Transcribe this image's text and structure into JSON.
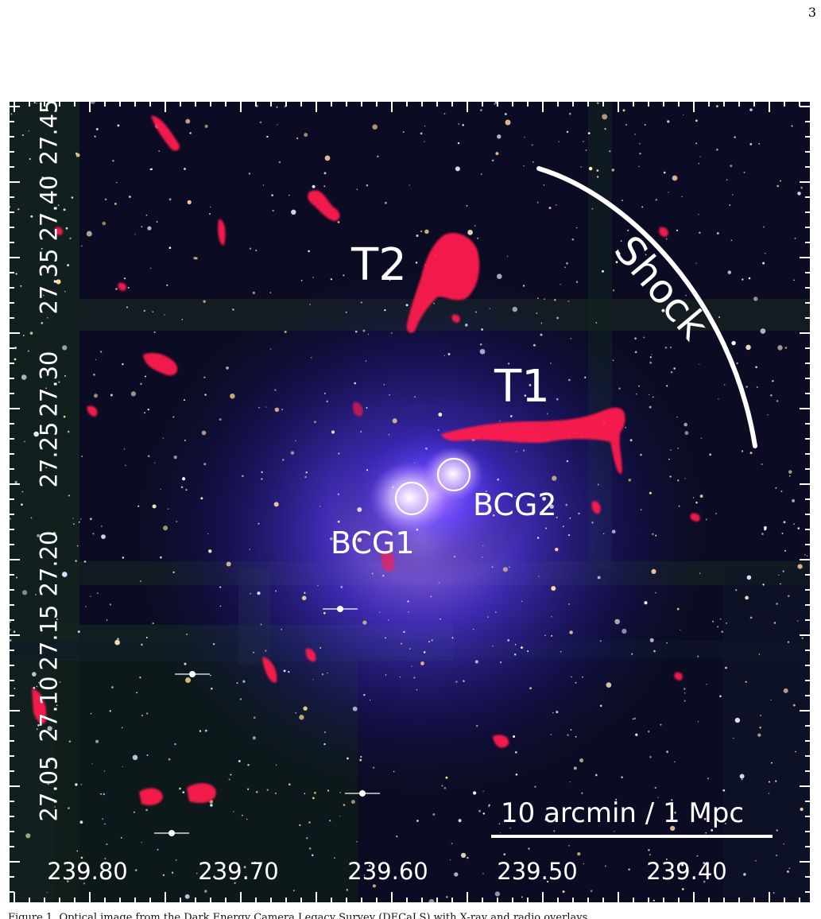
{
  "page_number": "3",
  "figure": {
    "y_tick_labels": [
      "27.45",
      "27.40",
      "27.35",
      "27.30",
      "27.25",
      "27.20",
      "27.15",
      "27.10",
      "27.05"
    ],
    "x_tick_labels": [
      "239.80",
      "239.70",
      "239.60",
      "239.50",
      "239.40"
    ],
    "annotations": {
      "t2": "T2",
      "t1": "T1",
      "shock": "Shock",
      "bcg1": "BCG1",
      "bcg2": "BCG2",
      "scale_bar": "10 arcmin / 1 Mpc"
    },
    "colors": {
      "radio_emission": "#ff1f4d",
      "xray_emission": "#4a3cff",
      "background": "#080818",
      "annotation": "#ffffff"
    }
  },
  "caption": "Figure 1. Optical image from the Dark Energy Camera Legacy Survey (DECaLS) with X-ray and radio overlays"
}
